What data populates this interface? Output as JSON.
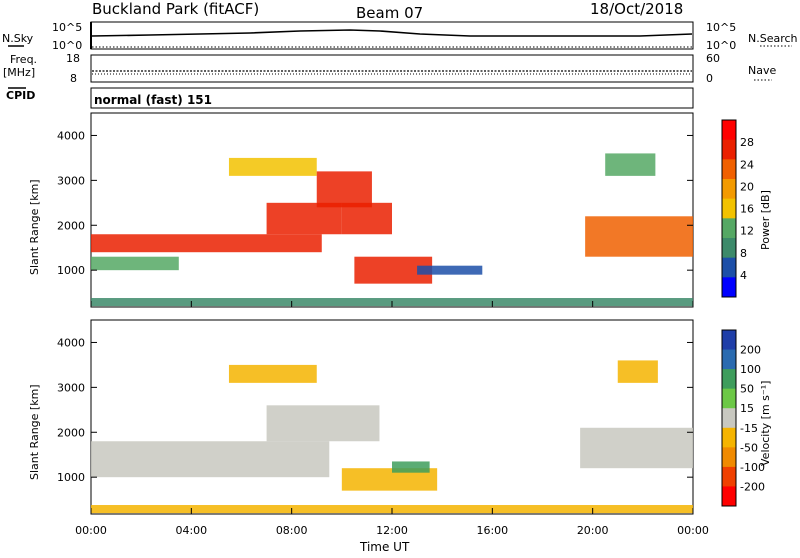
{
  "header": {
    "title": "Buckland Park (fitACF)",
    "beam": "Beam 07",
    "date": "18/Oct/2018"
  },
  "top_panels": {
    "nsky_label": "N.Sky",
    "nsky_ticks": [
      "10^5",
      "10^0"
    ],
    "nsearch_label": "N.Search",
    "nsearch_ticks": [
      "10^5",
      "10^0"
    ],
    "freq_label": "Freq.",
    "freq_unit": "[MHz]",
    "freq_ticks": [
      "18",
      "8"
    ],
    "nave_label": "Nave",
    "nave_ticks": [
      "60",
      "0"
    ],
    "cpid_label": "CPID",
    "cpid_value": "normal (fast) 151"
  },
  "colors": {
    "power_scale": [
      "#0000ff",
      "#1c4fa8",
      "#3c8a6a",
      "#55a864",
      "#f2c200",
      "#f39a00",
      "#f06000",
      "#ea2000",
      "#ff0000"
    ],
    "velocity_scale": [
      "#1f3ea8",
      "#2a6bb0",
      "#3e9d5c",
      "#6cc846",
      "#c8c8c0",
      "#f5b400",
      "#f08a00",
      "#f04000",
      "#ff0000"
    ],
    "ground_scatter": "#c8c8c0"
  },
  "chart_data": [
    {
      "type": "heatmap",
      "name": "power",
      "ylabel": "Slant Range [km]",
      "yticks": [
        1000,
        2000,
        3000,
        4000
      ],
      "ylim": [
        180,
        4500
      ],
      "xlim": [
        0,
        24
      ],
      "colorbar_label": "Power [dB]",
      "colorbar_ticks": [
        4,
        8,
        12,
        16,
        20,
        24,
        28
      ],
      "colorbar_range": [
        0,
        32
      ],
      "regions": [
        {
          "t0": 0.0,
          "t1": 24.0,
          "r0": 200,
          "r1": 380,
          "value": 9
        },
        {
          "t0": 0.0,
          "t1": 3.5,
          "r0": 1000,
          "r1": 1300,
          "value": 12
        },
        {
          "t0": 0.0,
          "t1": 9.2,
          "r0": 1400,
          "r1": 1800,
          "value": 25
        },
        {
          "t0": 5.5,
          "t1": 9.0,
          "r0": 3100,
          "r1": 3500,
          "value": 16
        },
        {
          "t0": 7.0,
          "t1": 10.0,
          "r0": 1800,
          "r1": 2500,
          "value": 26
        },
        {
          "t0": 9.0,
          "t1": 11.2,
          "r0": 2400,
          "r1": 3200,
          "value": 28
        },
        {
          "t0": 10.0,
          "t1": 12.0,
          "r0": 1800,
          "r1": 2500,
          "value": 27
        },
        {
          "t0": 10.5,
          "t1": 13.6,
          "r0": 700,
          "r1": 1300,
          "value": 27
        },
        {
          "t0": 13.0,
          "t1": 15.6,
          "r0": 900,
          "r1": 1100,
          "value": 7
        },
        {
          "t0": 19.7,
          "t1": 24.0,
          "r0": 1300,
          "r1": 2200,
          "value": 24
        },
        {
          "t0": 20.5,
          "t1": 22.5,
          "r0": 3100,
          "r1": 3600,
          "value": 14
        }
      ]
    },
    {
      "type": "heatmap",
      "name": "velocity",
      "ylabel": "Slant Range [km]",
      "yticks": [
        1000,
        2000,
        3000,
        4000
      ],
      "ylim": [
        180,
        4500
      ],
      "xlim": [
        0,
        24
      ],
      "xticks": [
        "00:00",
        "04:00",
        "08:00",
        "12:00",
        "16:00",
        "20:00",
        "00:00"
      ],
      "xlabel": "Time UT",
      "colorbar_label": "Velocity [m s⁻¹]",
      "colorbar_ticks": [
        "200",
        "100",
        "50",
        "15",
        "-15",
        "-50",
        "-100",
        "-200"
      ],
      "regions": [
        {
          "t0": 0.0,
          "t1": 24.0,
          "r0": 200,
          "r1": 380,
          "value": -40
        },
        {
          "t0": 0.0,
          "t1": 9.5,
          "r0": 1000,
          "r1": 1800,
          "value": 0
        },
        {
          "t0": 5.5,
          "t1": 9.0,
          "r0": 3100,
          "r1": 3500,
          "value": -40
        },
        {
          "t0": 7.0,
          "t1": 11.5,
          "r0": 1800,
          "r1": 2600,
          "value": 0
        },
        {
          "t0": 10.0,
          "t1": 13.8,
          "r0": 700,
          "r1": 1200,
          "value": -30
        },
        {
          "t0": 12.0,
          "t1": 13.5,
          "r0": 1100,
          "r1": 1350,
          "value": 60
        },
        {
          "t0": 19.5,
          "t1": 24.0,
          "r0": 1200,
          "r1": 2100,
          "value": 0
        },
        {
          "t0": 21.0,
          "t1": 22.6,
          "r0": 3100,
          "r1": 3600,
          "value": -40
        }
      ]
    }
  ]
}
